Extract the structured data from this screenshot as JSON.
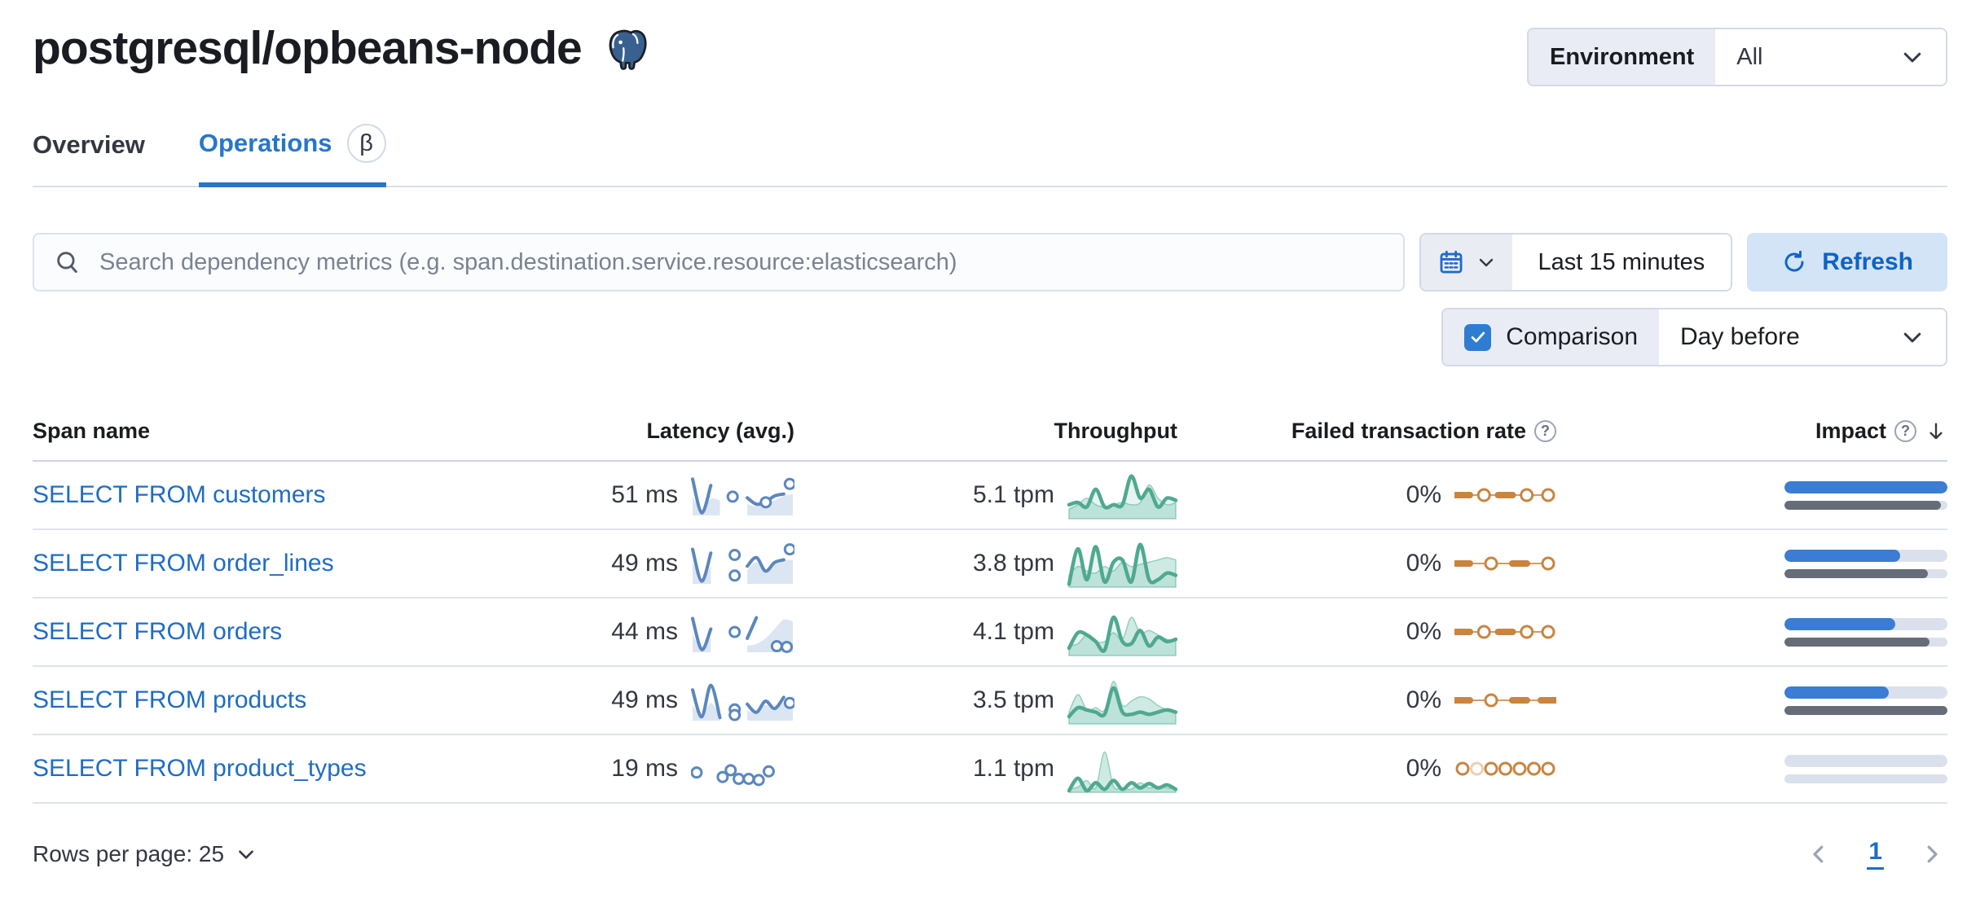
{
  "header": {
    "title": "postgresql/opbeans-node",
    "environment_label": "Environment",
    "environment_value": "All"
  },
  "tabs": [
    {
      "label": "Overview",
      "active": false
    },
    {
      "label": "Operations",
      "active": true,
      "badge": "β"
    }
  ],
  "toolbar": {
    "search_placeholder": "Search dependency metrics (e.g. span.destination.service.resource:elasticsearch)",
    "time_range": "Last 15 minutes",
    "refresh_label": "Refresh",
    "comparison_label": "Comparison",
    "comparison_checked": true,
    "comparison_value": "Day before"
  },
  "table": {
    "columns": [
      "Span name",
      "Latency (avg.)",
      "Throughput",
      "Failed transaction rate",
      "Impact"
    ],
    "sorted_column": "Impact",
    "sort_direction": "desc",
    "rows": [
      {
        "span_name": "SELECT FROM customers",
        "latency": "51 ms",
        "throughput": "5.1 tpm",
        "failed_rate": "0%",
        "impact_current": 100,
        "impact_previous": 96,
        "latency_spark": {
          "area": [
            0.5,
            0.08,
            0.42,
            0.38,
            null,
            null,
            0.28,
            0.22,
            0.3,
            0.38,
            0.5,
            0.55
          ],
          "line": [
            0.95,
            0.05,
            0.78,
            null,
            null,
            null,
            0.45,
            0.28,
            0.34,
            0.5,
            0.55,
            null
          ],
          "dots": [
            [
              0.4,
              0.48
            ],
            [
              0.73,
              0.33
            ],
            [
              0.97,
              0.82
            ]
          ]
        },
        "throughput_spark": {
          "current": [
            0.3,
            0.35,
            0.25,
            0.65,
            0.25,
            0.3,
            0.3,
            0.95,
            0.45,
            0.65,
            0.25,
            0.45,
            0.4
          ],
          "comparison": [
            0.2,
            0.3,
            0.45,
            0.3,
            0.25,
            0.3,
            0.35,
            0.3,
            0.35,
            0.75,
            0.45,
            0.3,
            0.35
          ]
        },
        "failed_spark": {
          "tokens": [
            "dash",
            "ring",
            "dash",
            "ring",
            "ring"
          ],
          "line": true
        }
      },
      {
        "span_name": "SELECT FROM order_lines",
        "latency": "49 ms",
        "throughput": "3.8 tpm",
        "failed_rate": "0%",
        "impact_current": 71,
        "impact_previous": 88,
        "latency_spark": {
          "area": [
            0.55,
            0.1,
            0.45,
            null,
            null,
            null,
            0.35,
            0.55,
            0.3,
            0.5,
            0.6,
            0.62
          ],
          "line": [
            0.9,
            0.05,
            0.8,
            null,
            null,
            null,
            0.45,
            0.68,
            0.32,
            0.55,
            0.62,
            null
          ],
          "dots": [
            [
              0.42,
              0.75
            ],
            [
              0.42,
              0.2
            ],
            [
              0.97,
              0.9
            ]
          ]
        },
        "throughput_spark": {
          "current": [
            0.05,
            0.85,
            0.15,
            0.9,
            0.1,
            0.55,
            0.6,
            0.1,
            0.95,
            0.15,
            0.15,
            0.3,
            0.25
          ],
          "comparison": [
            0.25,
            0.45,
            0.35,
            0.3,
            0.45,
            0.35,
            0.55,
            0.45,
            0.5,
            0.55,
            0.6,
            0.65,
            0.6
          ]
        },
        "failed_spark": {
          "tokens": [
            "dash",
            "ring",
            "dash",
            "ring"
          ],
          "line": true
        }
      },
      {
        "span_name": "SELECT FROM orders",
        "latency": "44 ms",
        "throughput": "4.1 tpm",
        "failed_rate": "0%",
        "impact_current": 68,
        "impact_previous": 89,
        "latency_spark": {
          "area": [
            0.45,
            0.08,
            0.35,
            null,
            null,
            null,
            0.15,
            0.2,
            0.35,
            0.6,
            0.85,
            0.8
          ],
          "line": [
            0.88,
            0.05,
            0.6,
            null,
            null,
            null,
            0.35,
            0.9,
            null,
            null,
            null,
            null
          ],
          "dots": [
            [
              0.42,
              0.52
            ],
            [
              0.84,
              0.14
            ],
            [
              0.94,
              0.12
            ]
          ]
        },
        "throughput_spark": {
          "current": [
            0.15,
            0.5,
            0.45,
            0.3,
            0.1,
            0.85,
            0.3,
            0.25,
            0.55,
            0.2,
            0.4,
            0.3,
            0.35
          ],
          "comparison": [
            0.2,
            0.25,
            0.45,
            0.3,
            0.3,
            0.5,
            0.35,
            0.85,
            0.5,
            0.55,
            0.45,
            0.35,
            0.3
          ]
        },
        "failed_spark": {
          "tokens": [
            "dash",
            "ring",
            "dash",
            "ring",
            "ring"
          ],
          "line": true
        }
      },
      {
        "span_name": "SELECT FROM products",
        "latency": "49 ms",
        "throughput": "3.5 tpm",
        "failed_rate": "0%",
        "impact_current": 64,
        "impact_previous": 100,
        "latency_spark": {
          "area": [
            0.4,
            0.12,
            0.45,
            0.1,
            null,
            null,
            0.25,
            0.18,
            0.4,
            0.25,
            0.45,
            0.35
          ],
          "line": [
            0.8,
            0.08,
            0.92,
            0.06,
            null,
            null,
            0.42,
            0.2,
            0.5,
            0.3,
            0.6,
            null
          ],
          "dots": [
            [
              0.42,
              0.28
            ],
            [
              0.42,
              0.13
            ],
            [
              0.97,
              0.45
            ]
          ]
        },
        "throughput_spark": {
          "current": [
            0.15,
            0.35,
            0.3,
            0.25,
            0.2,
            0.8,
            0.25,
            0.2,
            0.25,
            0.2,
            0.25,
            0.3,
            0.25
          ],
          "comparison": [
            0.25,
            0.65,
            0.3,
            0.35,
            0.3,
            0.95,
            0.4,
            0.5,
            0.6,
            0.55,
            0.4,
            0.3,
            0.25
          ]
        },
        "failed_spark": {
          "tokens": [
            "dash",
            "ring",
            "dash",
            "dash"
          ],
          "line": true
        }
      },
      {
        "span_name": "SELECT FROM product_types",
        "latency": "19 ms",
        "throughput": "1.1 tpm",
        "failed_rate": "0%",
        "impact_current": 0,
        "impact_previous": 0,
        "latency_spark": {
          "area": [
            null,
            null,
            null,
            null,
            null,
            null,
            null,
            null,
            null,
            null,
            null,
            null
          ],
          "line": [
            null,
            null,
            null,
            null,
            null,
            null,
            null,
            null,
            null,
            null,
            null,
            null
          ],
          "dots": [
            [
              0.04,
              0.42
            ],
            [
              0.3,
              0.3
            ],
            [
              0.38,
              0.48
            ],
            [
              0.46,
              0.25
            ],
            [
              0.56,
              0.25
            ],
            [
              0.66,
              0.22
            ],
            [
              0.76,
              0.45
            ]
          ]
        },
        "throughput_spark": {
          "current": [
            0.02,
            0.3,
            0.02,
            0.2,
            0.05,
            0.25,
            0.05,
            0.2,
            0.08,
            0.18,
            0.08,
            0.15,
            0.05
          ],
          "comparison": [
            0.05,
            0.1,
            0.25,
            0.08,
            0.9,
            0.12,
            0.08,
            0.05,
            0.2,
            0.08,
            0.12,
            0.08,
            0.05
          ]
        },
        "failed_spark": {
          "tokens": [
            "ring",
            "ring_light",
            "ring",
            "ring",
            "ring",
            "ring",
            "ring"
          ],
          "line": false
        }
      }
    ]
  },
  "footer": {
    "rows_per_page_label": "Rows per page: 25",
    "page": "1"
  },
  "colors": {
    "link_blue": "#1f6cc4",
    "tab_blue": "#2776cb",
    "spark_blue": "#5b87bd",
    "spark_blue_fill": "#dce6f2",
    "spark_green": "#4fa98f",
    "spark_green_fill": "rgba(84,179,153,0.28)",
    "spark_orange": "#c98440",
    "spark_orange_light": "#ead0b3",
    "impact_blue": "#3b7cd4",
    "impact_gray": "#666d78",
    "impact_track": "#dbe1ec"
  }
}
